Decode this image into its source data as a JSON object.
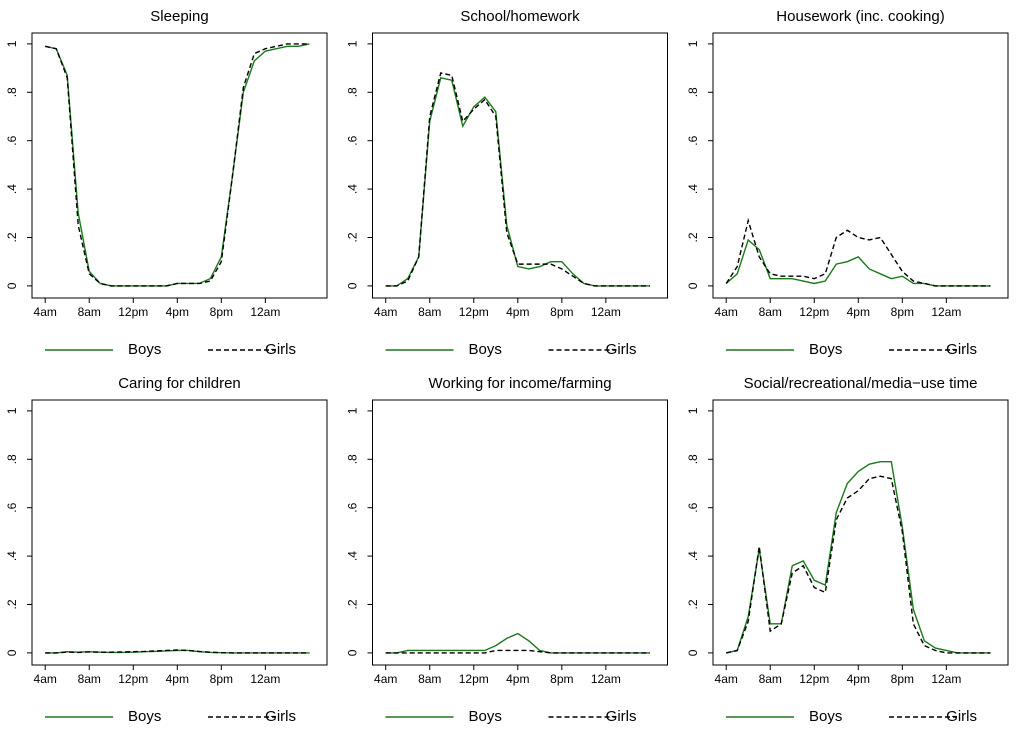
{
  "chart_data": [
    {
      "type": "line",
      "title": "Sleeping",
      "x": [
        4,
        5,
        6,
        7,
        8,
        9,
        10,
        11,
        12,
        13,
        14,
        15,
        16,
        17,
        18,
        19,
        20,
        21,
        22,
        23,
        24,
        25,
        26,
        27,
        28
      ],
      "series": [
        {
          "name": "Boys",
          "color": "#1a7a1a",
          "dash": false,
          "values": [
            0.99,
            0.98,
            0.87,
            0.3,
            0.06,
            0.01,
            0,
            0,
            0,
            0,
            0,
            0,
            0.01,
            0.01,
            0.01,
            0.03,
            0.12,
            0.45,
            0.8,
            0.93,
            0.97,
            0.98,
            0.99,
            0.99,
            1.0
          ]
        },
        {
          "name": "Girls",
          "color": "#000000",
          "dash": true,
          "values": [
            0.99,
            0.98,
            0.86,
            0.25,
            0.05,
            0.01,
            0,
            0,
            0,
            0,
            0,
            0,
            0.01,
            0.01,
            0.01,
            0.02,
            0.1,
            0.45,
            0.82,
            0.96,
            0.98,
            0.99,
            1.0,
            1.0,
            1.0
          ]
        }
      ],
      "xlim": [
        2.8,
        29.6
      ],
      "ylim": [
        -0.05,
        1.045
      ],
      "xticks": [
        {
          "value": 4,
          "label": "4am"
        },
        {
          "value": 8,
          "label": "8am"
        },
        {
          "value": 12,
          "label": "12pm"
        },
        {
          "value": 16,
          "label": "4pm"
        },
        {
          "value": 20,
          "label": "8pm"
        },
        {
          "value": 24,
          "label": "12am"
        }
      ],
      "yticks": [
        0,
        {
          "value": 0.2,
          "label": ".2"
        },
        {
          "value": 0.4,
          "label": ".4"
        },
        {
          "value": 0.6,
          "label": ".6"
        },
        {
          "value": 0.8,
          "label": ".8"
        },
        1
      ]
    },
    {
      "type": "line",
      "title": "School/homework",
      "x": [
        4,
        5,
        6,
        7,
        8,
        9,
        10,
        11,
        12,
        13,
        14,
        15,
        16,
        17,
        18,
        19,
        20,
        21,
        22,
        23,
        24,
        25,
        26,
        27,
        28
      ],
      "series": [
        {
          "name": "Boys",
          "color": "#1a7a1a",
          "dash": false,
          "values": [
            0,
            0,
            0.03,
            0.12,
            0.68,
            0.86,
            0.85,
            0.66,
            0.74,
            0.78,
            0.72,
            0.25,
            0.08,
            0.07,
            0.08,
            0.1,
            0.1,
            0.05,
            0.01,
            0,
            0,
            0,
            0,
            0,
            0
          ]
        },
        {
          "name": "Girls",
          "color": "#000000",
          "dash": true,
          "values": [
            0,
            0,
            0.02,
            0.12,
            0.7,
            0.88,
            0.87,
            0.68,
            0.73,
            0.77,
            0.7,
            0.22,
            0.09,
            0.09,
            0.09,
            0.09,
            0.07,
            0.04,
            0.01,
            0,
            0,
            0,
            0,
            0,
            0
          ]
        }
      ],
      "xlim": [
        2.8,
        29.6
      ],
      "ylim": [
        -0.05,
        1.045
      ],
      "xticks": [
        {
          "value": 4,
          "label": "4am"
        },
        {
          "value": 8,
          "label": "8am"
        },
        {
          "value": 12,
          "label": "12pm"
        },
        {
          "value": 16,
          "label": "4pm"
        },
        {
          "value": 20,
          "label": "8pm"
        },
        {
          "value": 24,
          "label": "12am"
        }
      ],
      "yticks": [
        0,
        {
          "value": 0.2,
          "label": ".2"
        },
        {
          "value": 0.4,
          "label": ".4"
        },
        {
          "value": 0.6,
          "label": ".6"
        },
        {
          "value": 0.8,
          "label": ".8"
        },
        1
      ]
    },
    {
      "type": "line",
      "title": "Housework (inc. cooking)",
      "x": [
        4,
        5,
        6,
        7,
        8,
        9,
        10,
        11,
        12,
        13,
        14,
        15,
        16,
        17,
        18,
        19,
        20,
        21,
        22,
        23,
        24,
        25,
        26,
        27,
        28
      ],
      "series": [
        {
          "name": "Boys",
          "color": "#1a7a1a",
          "dash": false,
          "values": [
            0.01,
            0.05,
            0.19,
            0.15,
            0.03,
            0.03,
            0.03,
            0.02,
            0.01,
            0.02,
            0.09,
            0.1,
            0.12,
            0.07,
            0.05,
            0.03,
            0.04,
            0.01,
            0.01,
            0,
            0,
            0,
            0,
            0,
            0
          ]
        },
        {
          "name": "Girls",
          "color": "#000000",
          "dash": true,
          "values": [
            0.01,
            0.08,
            0.27,
            0.12,
            0.05,
            0.04,
            0.04,
            0.04,
            0.03,
            0.05,
            0.2,
            0.23,
            0.2,
            0.19,
            0.2,
            0.13,
            0.06,
            0.02,
            0.01,
            0,
            0,
            0,
            0,
            0,
            0
          ]
        }
      ],
      "xlim": [
        2.8,
        29.6
      ],
      "ylim": [
        -0.05,
        1.045
      ],
      "xticks": [
        {
          "value": 4,
          "label": "4am"
        },
        {
          "value": 8,
          "label": "8am"
        },
        {
          "value": 12,
          "label": "12pm"
        },
        {
          "value": 16,
          "label": "4pm"
        },
        {
          "value": 20,
          "label": "8pm"
        },
        {
          "value": 24,
          "label": "12am"
        }
      ],
      "yticks": [
        0,
        {
          "value": 0.2,
          "label": ".2"
        },
        {
          "value": 0.4,
          "label": ".4"
        },
        {
          "value": 0.6,
          "label": ".6"
        },
        {
          "value": 0.8,
          "label": ".8"
        },
        1
      ]
    },
    {
      "type": "line",
      "title": "Caring for children",
      "x": [
        4,
        5,
        6,
        7,
        8,
        9,
        10,
        11,
        12,
        13,
        14,
        15,
        16,
        17,
        18,
        19,
        20,
        21,
        22,
        23,
        24,
        25,
        26,
        27,
        28
      ],
      "series": [
        {
          "name": "Boys",
          "color": "#1a7a1a",
          "dash": false,
          "values": [
            0,
            0,
            0.005,
            0.003,
            0.005,
            0.003,
            0.002,
            0.002,
            0.003,
            0.005,
            0.006,
            0.008,
            0.01,
            0.01,
            0.005,
            0.002,
            0.001,
            0,
            0,
            0,
            0,
            0,
            0,
            0,
            0
          ]
        },
        {
          "name": "Girls",
          "color": "#000000",
          "dash": true,
          "values": [
            0,
            0,
            0.003,
            0.002,
            0.004,
            0.003,
            0.003,
            0.004,
            0.005,
            0.006,
            0.008,
            0.01,
            0.012,
            0.01,
            0.006,
            0.003,
            0.001,
            0,
            0,
            0,
            0,
            0,
            0,
            0,
            0
          ]
        }
      ],
      "xlim": [
        2.8,
        29.6
      ],
      "ylim": [
        -0.05,
        1.045
      ],
      "xticks": [
        {
          "value": 4,
          "label": "4am"
        },
        {
          "value": 8,
          "label": "8am"
        },
        {
          "value": 12,
          "label": "12pm"
        },
        {
          "value": 16,
          "label": "4pm"
        },
        {
          "value": 20,
          "label": "8pm"
        },
        {
          "value": 24,
          "label": "12am"
        }
      ],
      "yticks": [
        0,
        {
          "value": 0.2,
          "label": ".2"
        },
        {
          "value": 0.4,
          "label": ".4"
        },
        {
          "value": 0.6,
          "label": ".6"
        },
        {
          "value": 0.8,
          "label": ".8"
        },
        1
      ]
    },
    {
      "type": "line",
      "title": "Working for income/farming",
      "x": [
        4,
        5,
        6,
        7,
        8,
        9,
        10,
        11,
        12,
        13,
        14,
        15,
        16,
        17,
        18,
        19,
        20,
        21,
        22,
        23,
        24,
        25,
        26,
        27,
        28
      ],
      "series": [
        {
          "name": "Boys",
          "color": "#1a7a1a",
          "dash": false,
          "values": [
            0,
            0,
            0.01,
            0.01,
            0.01,
            0.01,
            0.01,
            0.01,
            0.01,
            0.01,
            0.03,
            0.06,
            0.08,
            0.05,
            0.01,
            0,
            0,
            0,
            0,
            0,
            0,
            0,
            0,
            0,
            0
          ]
        },
        {
          "name": "Girls",
          "color": "#000000",
          "dash": true,
          "values": [
            0,
            0,
            0,
            0,
            0,
            0,
            0,
            0,
            0,
            0,
            0.01,
            0.01,
            0.01,
            0.01,
            0.005,
            0,
            0,
            0,
            0,
            0,
            0,
            0,
            0,
            0,
            0
          ]
        }
      ],
      "xlim": [
        2.8,
        29.6
      ],
      "ylim": [
        -0.05,
        1.045
      ],
      "xticks": [
        {
          "value": 4,
          "label": "4am"
        },
        {
          "value": 8,
          "label": "8am"
        },
        {
          "value": 12,
          "label": "12pm"
        },
        {
          "value": 16,
          "label": "4pm"
        },
        {
          "value": 20,
          "label": "8pm"
        },
        {
          "value": 24,
          "label": "12am"
        }
      ],
      "yticks": [
        0,
        {
          "value": 0.2,
          "label": ".2"
        },
        {
          "value": 0.4,
          "label": ".4"
        },
        {
          "value": 0.6,
          "label": ".6"
        },
        {
          "value": 0.8,
          "label": ".8"
        },
        1
      ]
    },
    {
      "type": "line",
      "title": "Social/recreational/media−use time",
      "x": [
        4,
        5,
        6,
        7,
        8,
        9,
        10,
        11,
        12,
        13,
        14,
        15,
        16,
        17,
        18,
        19,
        20,
        21,
        22,
        23,
        24,
        25,
        26,
        27,
        28
      ],
      "series": [
        {
          "name": "Boys",
          "color": "#1a7a1a",
          "dash": false,
          "values": [
            0,
            0.01,
            0.15,
            0.43,
            0.12,
            0.12,
            0.36,
            0.38,
            0.3,
            0.28,
            0.58,
            0.7,
            0.75,
            0.78,
            0.79,
            0.79,
            0.52,
            0.18,
            0.05,
            0.02,
            0.01,
            0,
            0,
            0,
            0
          ]
        },
        {
          "name": "Girls",
          "color": "#000000",
          "dash": true,
          "values": [
            0,
            0.01,
            0.13,
            0.44,
            0.09,
            0.12,
            0.33,
            0.36,
            0.27,
            0.25,
            0.55,
            0.64,
            0.67,
            0.72,
            0.73,
            0.72,
            0.5,
            0.12,
            0.03,
            0.01,
            0,
            0,
            0,
            0,
            0
          ]
        }
      ],
      "xlim": [
        2.8,
        29.6
      ],
      "ylim": [
        -0.05,
        1.045
      ],
      "xticks": [
        {
          "value": 4,
          "label": "4am"
        },
        {
          "value": 8,
          "label": "8am"
        },
        {
          "value": 12,
          "label": "12pm"
        },
        {
          "value": 16,
          "label": "4pm"
        },
        {
          "value": 20,
          "label": "8pm"
        },
        {
          "value": 24,
          "label": "12am"
        }
      ],
      "yticks": [
        0,
        {
          "value": 0.2,
          "label": ".2"
        },
        {
          "value": 0.4,
          "label": ".4"
        },
        {
          "value": 0.6,
          "label": ".6"
        },
        {
          "value": 0.8,
          "label": ".8"
        },
        1
      ]
    }
  ]
}
